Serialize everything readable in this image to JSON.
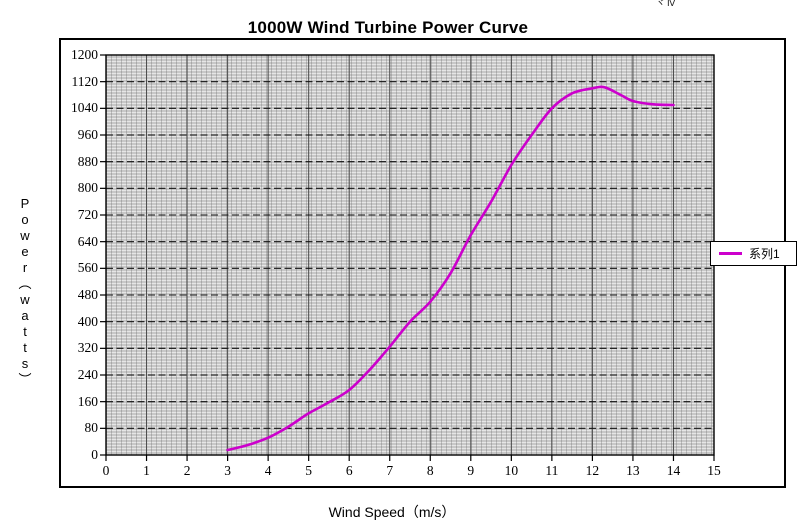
{
  "window": {
    "top_right_fragment": "ヾⅣ"
  },
  "chart": {
    "title": "1000W Wind Turbine Power Curve",
    "x_axis_label": "Wind Speed（m/s）",
    "y_axis_label": "Power（watts）",
    "y_axis_label_vertical": "Power︵watts︶",
    "legend": {
      "series_label": "系列1",
      "line_color": "#CC00CC"
    }
  },
  "chart_data": {
    "type": "line",
    "title": "1000W Wind Turbine Power Curve",
    "xlabel": "Wind Speed（m/s）",
    "ylabel": "Power（watts）",
    "xlim": [
      0,
      15
    ],
    "ylim": [
      0,
      1200
    ],
    "x_ticks": [
      0,
      1,
      2,
      3,
      4,
      5,
      6,
      7,
      8,
      9,
      10,
      11,
      12,
      13,
      14,
      15
    ],
    "y_ticks": [
      0,
      80,
      160,
      240,
      320,
      400,
      480,
      560,
      640,
      720,
      800,
      880,
      960,
      1040,
      1120,
      1200
    ],
    "grid": {
      "plot_background": "#c7c7c7",
      "major_horizontal": "dashed black every 80 W",
      "major_vertical": "solid dark gray every 1 m/s",
      "minor": "fine light-gray mesh"
    },
    "legend_position": "right",
    "series": [
      {
        "name": "系列1",
        "color": "#CC00CC",
        "points": [
          [
            3,
            15
          ],
          [
            3.5,
            30
          ],
          [
            4,
            52
          ],
          [
            4.5,
            85
          ],
          [
            5,
            125
          ],
          [
            5.5,
            158
          ],
          [
            6,
            195
          ],
          [
            6.5,
            255
          ],
          [
            7,
            325
          ],
          [
            7.5,
            400
          ],
          [
            8,
            460
          ],
          [
            8.5,
            545
          ],
          [
            9,
            660
          ],
          [
            9.5,
            760
          ],
          [
            10,
            870
          ],
          [
            10.5,
            960
          ],
          [
            11,
            1040
          ],
          [
            11.5,
            1085
          ],
          [
            12,
            1100
          ],
          [
            12.3,
            1103
          ],
          [
            12.7,
            1080
          ],
          [
            13,
            1062
          ],
          [
            13.5,
            1052
          ],
          [
            14,
            1050
          ]
        ]
      }
    ]
  }
}
